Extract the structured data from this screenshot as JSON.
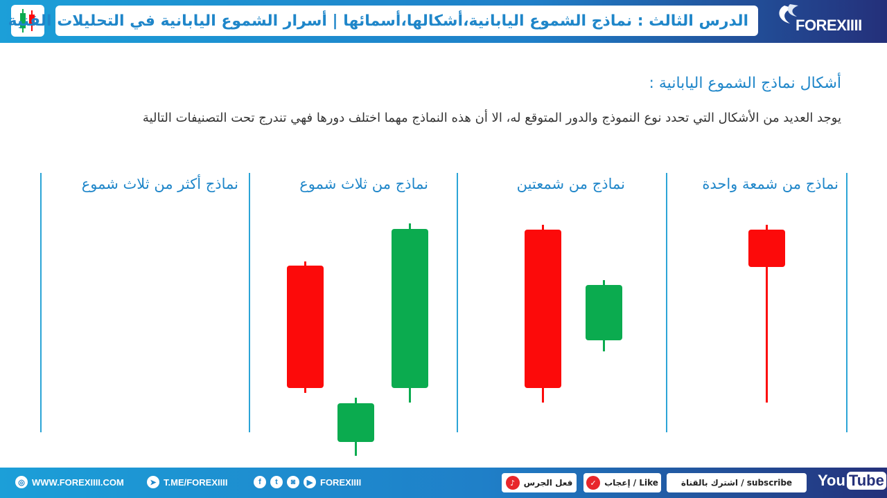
{
  "header": {
    "title": "الدرس الثالث : نماذج الشموع اليابانية،أشكالها،أسمائها | أسرار الشموع اليابانية في التحليلات الفنية",
    "brand": "FOREXIIII"
  },
  "content": {
    "section_title": "أشكال نماذج الشموع اليابانية :",
    "intro": "يوجد العديد من الأشكال التي تحدد نوع النموذج والدور المتوقع له، الا أن هذه النماذج مهما اختلف دورها فهي تندرج تحت التصنيفات التالية",
    "columns": [
      "نماذج من شمعة واحدة",
      "نماذج من شمعتين",
      "نماذج من ثلاث شموع",
      "نماذج أكثر من ثلاث شموع"
    ]
  },
  "colors": {
    "bull": "#0bab4f",
    "bear": "#fc0a0a",
    "accent": "#1f86c9"
  },
  "candles": [
    {
      "group": "single",
      "type": "bear"
    },
    {
      "group": "double",
      "type": "bear"
    },
    {
      "group": "double",
      "type": "bull"
    },
    {
      "group": "triple",
      "type": "bear"
    },
    {
      "group": "triple",
      "type": "bull"
    },
    {
      "group": "triple",
      "type": "bull"
    }
  ],
  "footer": {
    "website": "WWW.FOREXIIII.COM",
    "telegram": "T.ME/FOREXIIII",
    "social": "FOREXIIII",
    "bell": "فعل الجرس",
    "like": "إعجاب / Like",
    "subscribe": "اشترك بالقناة / subscribe",
    "yt_you": "You",
    "yt_tube": "Tube"
  }
}
